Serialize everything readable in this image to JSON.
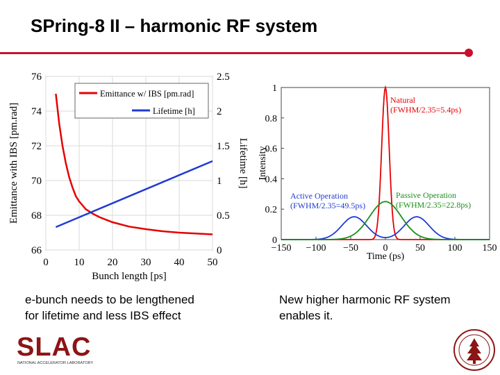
{
  "header": {
    "title": "SPring-8 II – harmonic RF system"
  },
  "captions": {
    "left": "e-bunch needs to be lengthened\nfor lifetime and less IBS effect",
    "right": "New higher harmonic RF system\nenables it."
  },
  "logos": {
    "slac_text": "SLAC",
    "slac_subtitle": "NATIONAL ACCELERATOR LABORATORY"
  },
  "colors": {
    "accent": "#c8102e",
    "red": "#e60000",
    "blue": "#1f3ad4",
    "green": "#1a8f1a"
  },
  "chart_data": [
    {
      "type": "line",
      "title": "",
      "xlabel": "Bunch length [ps]",
      "ylabel": "Emittance with IBS [pm.rad]",
      "y2label": "Lifetime [h]",
      "xlim": [
        0,
        50
      ],
      "ylim": [
        66,
        76
      ],
      "y2lim": [
        0,
        2.5
      ],
      "xticks": [
        "0",
        "10",
        "20",
        "30",
        "40",
        "50"
      ],
      "yticks": [
        "66",
        "68",
        "70",
        "72",
        "74",
        "76"
      ],
      "y2ticks": [
        "0",
        "0.5",
        "1",
        "1.5",
        "2",
        "2.5"
      ],
      "legend_position": "top-right",
      "series": [
        {
          "name": "Emittance w/ IBS [pm.rad]",
          "axis": "left",
          "x": [
            3,
            4,
            5,
            6,
            7,
            8,
            9,
            10,
            12,
            14,
            16,
            18,
            20,
            25,
            30,
            35,
            40,
            45,
            50
          ],
          "y": [
            75,
            73.3,
            72.0,
            71.0,
            70.2,
            69.6,
            69.1,
            68.8,
            68.35,
            68.1,
            67.9,
            67.75,
            67.6,
            67.35,
            67.2,
            67.08,
            67.0,
            66.95,
            66.9
          ]
        },
        {
          "name": "Lifetime [h]",
          "axis": "right",
          "x": [
            3,
            50
          ],
          "y": [
            0.33,
            1.28
          ]
        }
      ]
    },
    {
      "type": "line",
      "title": "",
      "xlabel": "Time (ps)",
      "ylabel": "Intensity",
      "xlim": [
        -150,
        150
      ],
      "ylim": [
        0,
        1
      ],
      "xticks": [
        "−150",
        "−100",
        "−50",
        "0",
        "50",
        "100",
        "150"
      ],
      "yticks": [
        "0",
        "0.2",
        "0.4",
        "0.6",
        "0.8",
        "1"
      ],
      "annotations": [
        {
          "text": "Natural",
          "detail": "(FWHM/2.35=5.4ps)",
          "color": "red"
        },
        {
          "text": "Active Operation",
          "detail": "(FWHM/2.35=49.5ps)",
          "color": "blue"
        },
        {
          "text": "Passive Operation",
          "detail": "(FWHM/2.35=22.8ps)",
          "color": "green"
        }
      ],
      "series": [
        {
          "name": "Natural",
          "shape": "gaussian",
          "amplitude": 1.0,
          "center": 0,
          "sigma": 5.4
        },
        {
          "name": "Active Operation",
          "shape": "double-hump",
          "amplitude": 0.15,
          "centers": [
            -45,
            45
          ],
          "sigma": 18
        },
        {
          "name": "Passive Operation",
          "shape": "gaussian",
          "amplitude": 0.25,
          "center": 0,
          "sigma": 22.8
        }
      ]
    }
  ]
}
